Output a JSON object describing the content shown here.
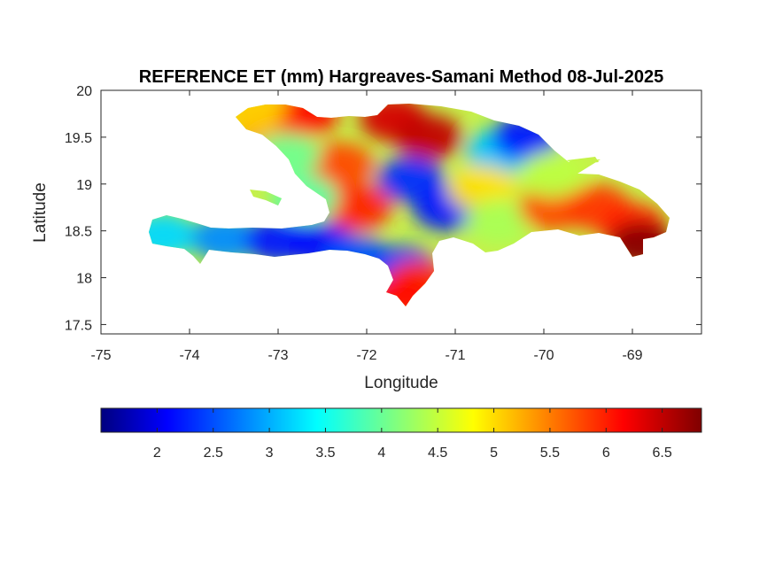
{
  "chart_data": {
    "type": "heatmap",
    "title": "REFERENCE ET (mm) Hargreaves-Samani Method  08-Jul-2025",
    "xlabel": "Longitude",
    "ylabel": "Latitude",
    "xlim": [
      -75,
      -68.22
    ],
    "ylim": [
      17.4,
      20
    ],
    "xticks": [
      -75,
      -74,
      -73,
      -72,
      -71,
      -70,
      -69
    ],
    "xtick_labels": [
      "-75",
      "-74",
      "-73",
      "-72",
      "-71",
      "-70",
      "-69"
    ],
    "yticks": [
      17.5,
      18,
      18.5,
      19,
      19.5,
      20
    ],
    "ytick_labels": [
      "17.5",
      "18",
      "18.5",
      "19",
      "19.5",
      "20"
    ],
    "colorbar": {
      "colormap": "jet",
      "range": [
        1.5,
        6.85
      ],
      "ticks": [
        2,
        2.5,
        3,
        3.5,
        4,
        4.5,
        5,
        5.5,
        6,
        6.5
      ],
      "tick_labels": [
        "2",
        "2.5",
        "3",
        "3.5",
        "4",
        "4.5",
        "5",
        "5.5",
        "6",
        "6.5"
      ]
    },
    "grid": false,
    "field_samples": [
      {
        "lon": -74.3,
        "lat": 18.45,
        "value": 3.3
      },
      {
        "lon": -73.6,
        "lat": 18.42,
        "value": 2.9
      },
      {
        "lon": -73.0,
        "lat": 18.4,
        "value": 2.3
      },
      {
        "lon": -72.5,
        "lat": 18.35,
        "value": 2.2
      },
      {
        "lon": -72.1,
        "lat": 18.2,
        "value": 2.6
      },
      {
        "lon": -71.6,
        "lat": 18.1,
        "value": 2.5
      },
      {
        "lon": -71.4,
        "lat": 17.95,
        "value": 5.9
      },
      {
        "lon": -71.6,
        "lat": 17.8,
        "value": 6.1
      },
      {
        "lon": -72.1,
        "lat": 18.75,
        "value": 6.0
      },
      {
        "lon": -72.3,
        "lat": 19.2,
        "value": 5.8
      },
      {
        "lon": -73.1,
        "lat": 19.6,
        "value": 5.4
      },
      {
        "lon": -72.7,
        "lat": 19.75,
        "value": 6.1
      },
      {
        "lon": -72.9,
        "lat": 19.3,
        "value": 4.1
      },
      {
        "lon": -71.7,
        "lat": 19.7,
        "value": 6.4
      },
      {
        "lon": -71.3,
        "lat": 19.5,
        "value": 6.5
      },
      {
        "lon": -71.5,
        "lat": 19.05,
        "value": 2.4
      },
      {
        "lon": -71.1,
        "lat": 18.75,
        "value": 2.3
      },
      {
        "lon": -70.5,
        "lat": 19.35,
        "value": 3.2
      },
      {
        "lon": -70.2,
        "lat": 19.5,
        "value": 2.3
      },
      {
        "lon": -70.7,
        "lat": 18.95,
        "value": 5.0
      },
      {
        "lon": -70.5,
        "lat": 18.6,
        "value": 4.4
      },
      {
        "lon": -69.9,
        "lat": 18.75,
        "value": 5.8
      },
      {
        "lon": -69.4,
        "lat": 18.75,
        "value": 5.9
      },
      {
        "lon": -69.0,
        "lat": 18.55,
        "value": 6.0
      },
      {
        "lon": -68.9,
        "lat": 18.35,
        "value": 6.8
      },
      {
        "lon": -69.9,
        "lat": 19.1,
        "value": 4.5
      },
      {
        "lon": -72.7,
        "lat": 18.85,
        "value": 4.0
      },
      {
        "lon": -73.3,
        "lat": 19.8,
        "value": 5.1
      }
    ]
  }
}
